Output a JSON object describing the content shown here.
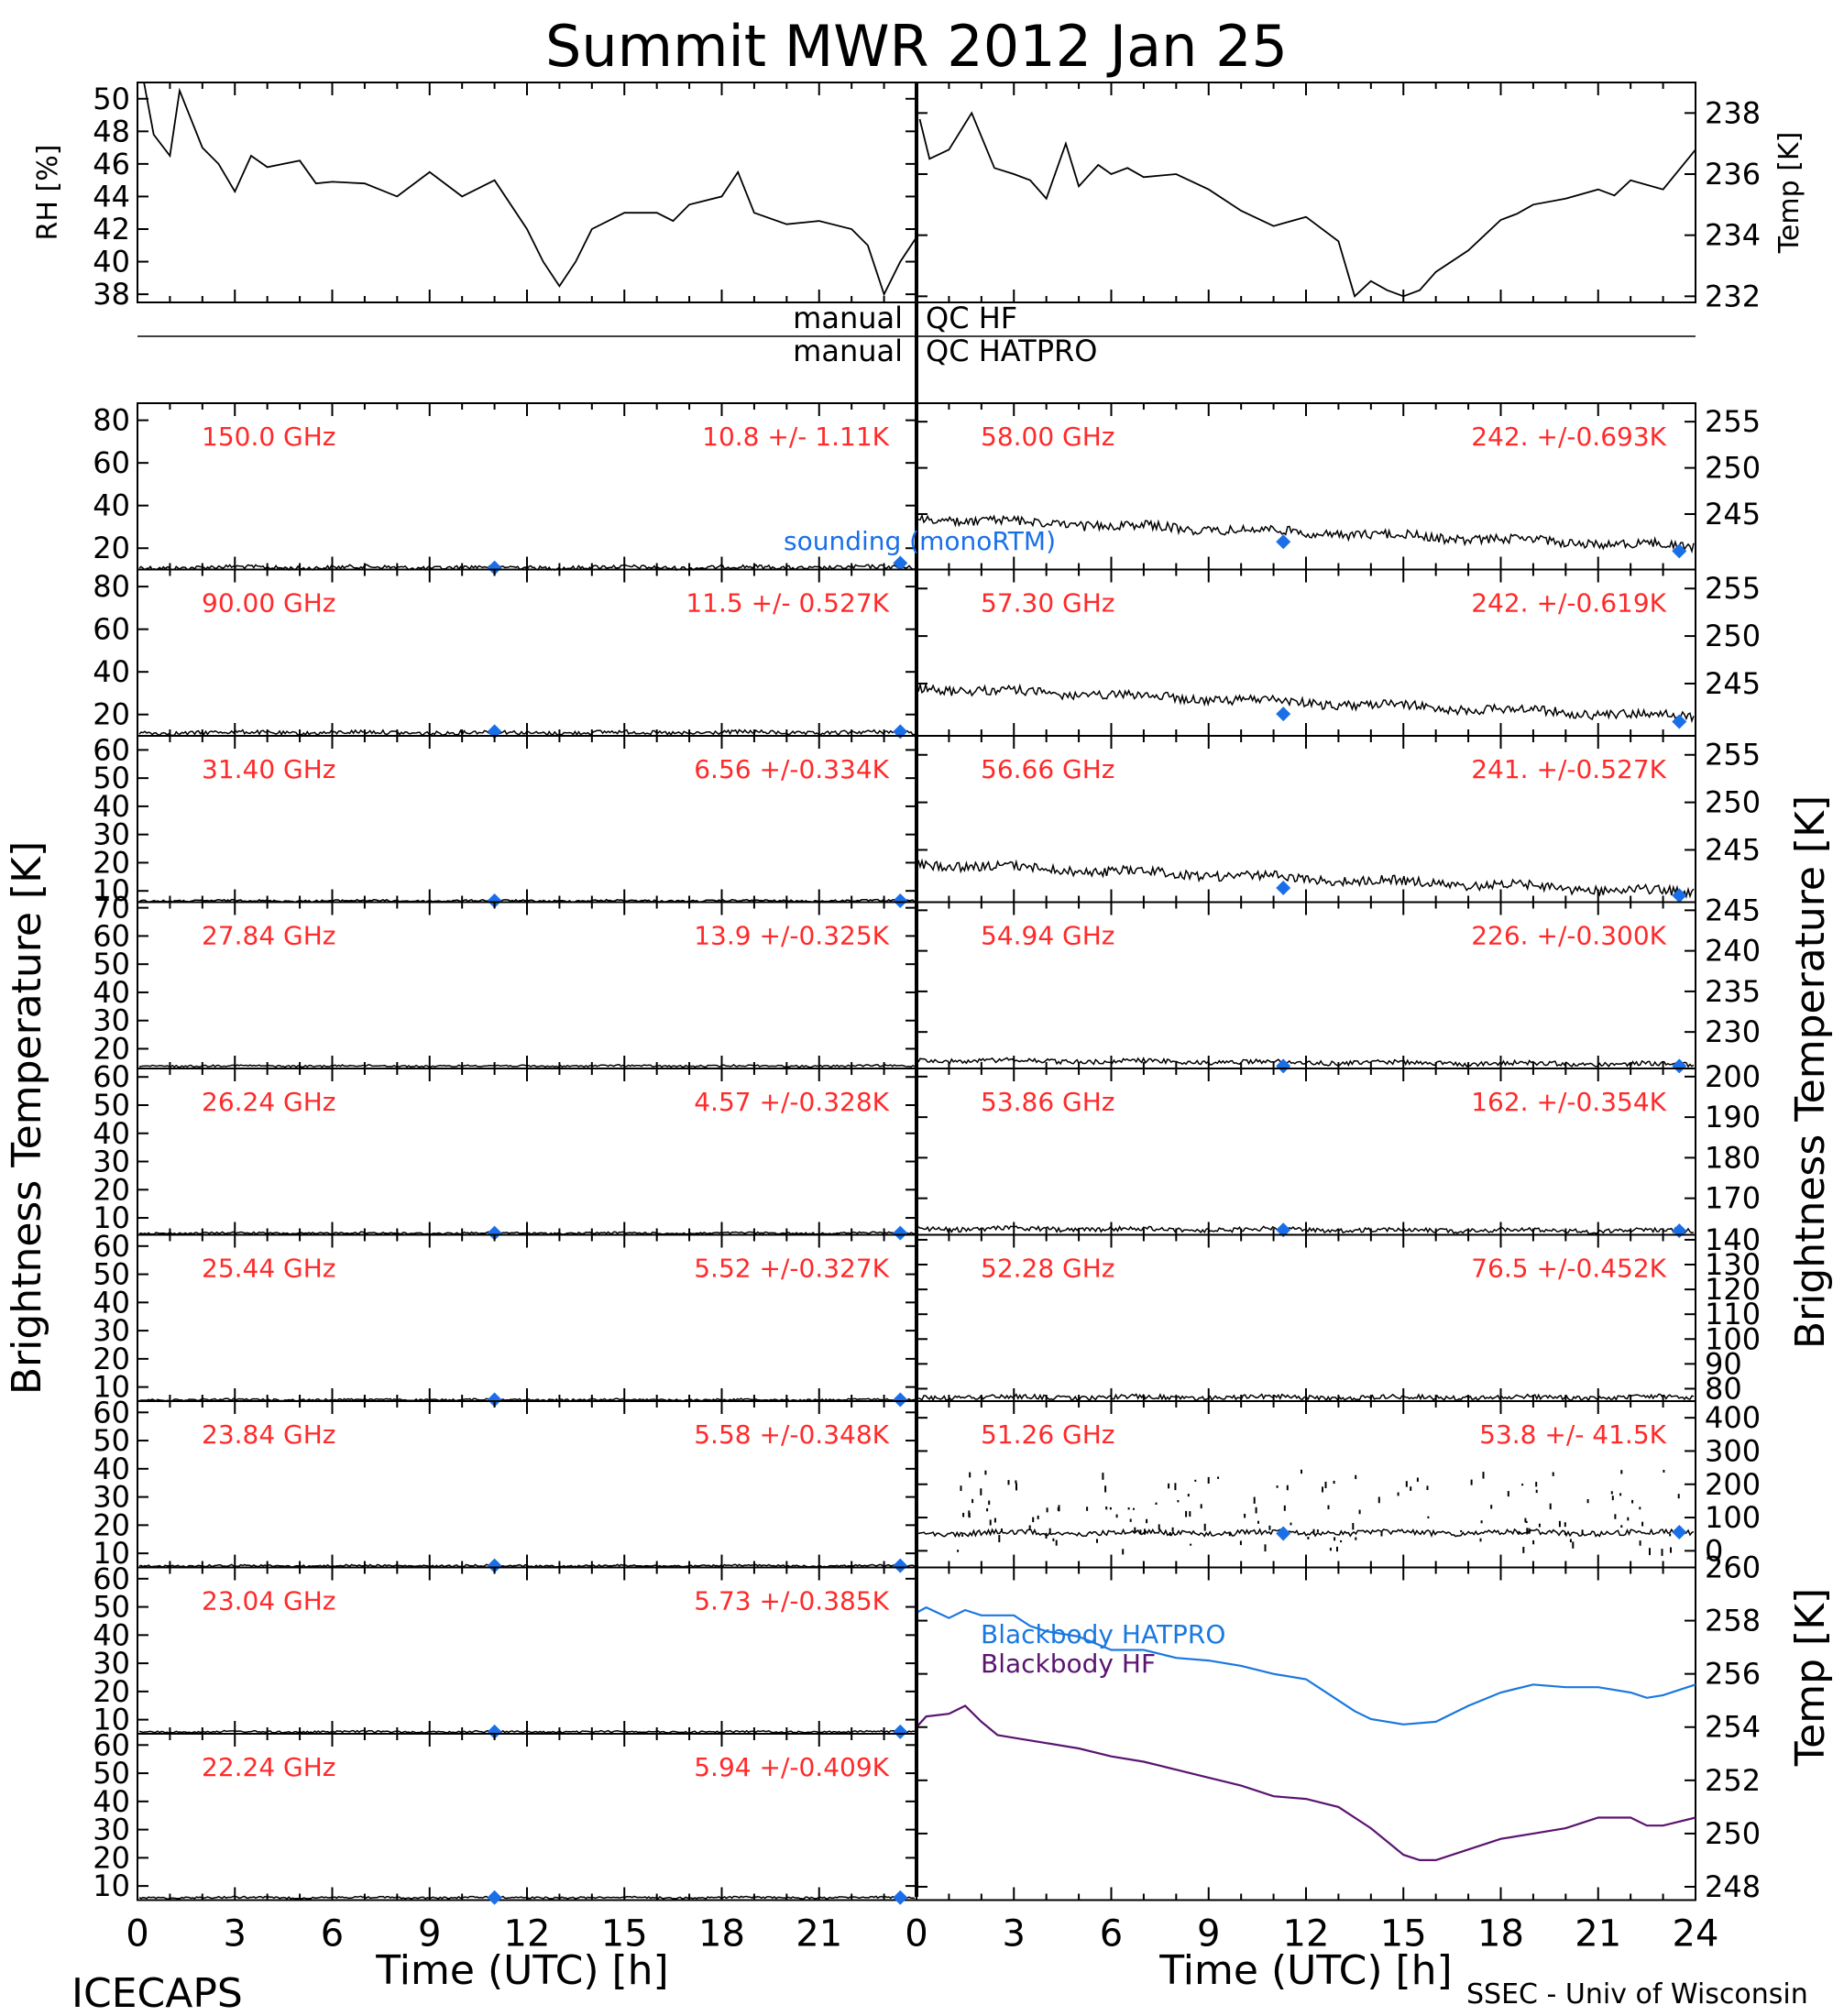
{
  "title": "Summit MWR 2012 Jan 25",
  "footer": {
    "left": "ICECAPS",
    "right": "SSEC - Univ of Wisconsin",
    "xlabel_left": "Time (UTC) [h]",
    "xlabel_right": "Time (UTC) [h]"
  },
  "side_labels": {
    "left": "Brightness Temperature [K]",
    "right": "Brightness Temperature [K]",
    "temp_right": "Temp [K]"
  },
  "qc": {
    "manual_1": "manual",
    "qc_hf": "QC HF",
    "manual_2": "manual",
    "qc_hatpro": "QC HATPRO"
  },
  "legend": {
    "sounding": "sounding (monoRTM)",
    "bb_hatpro": "Blackbody HATPRO",
    "bb_hf": "Blackbody HF"
  },
  "colors": {
    "label_red": "#ff2a2a",
    "sounding_blue": "#1a6fe8",
    "bb_hatpro": "#1a78e0",
    "bb_hf": "#5a1470",
    "trace": "#000000"
  },
  "chart_data": {
    "type": "line",
    "x_ticks": [
      0,
      3,
      6,
      9,
      12,
      15,
      18,
      21
    ],
    "x_ticks_right": [
      0,
      3,
      6,
      9,
      12,
      15,
      18,
      21,
      24
    ],
    "xlim": [
      0,
      24
    ],
    "top_panel": {
      "left": {
        "ylabel": "RH [%]",
        "ylim": [
          37.5,
          51
        ],
        "yticks": [
          "38",
          "40",
          "42",
          "44",
          "46",
          "48",
          "50"
        ],
        "x": [
          0.2,
          0.5,
          1,
          1.3,
          2,
          2.5,
          3,
          3.5,
          4,
          5,
          5.5,
          6,
          7,
          8,
          9,
          10,
          11,
          12,
          12.5,
          13,
          13.5,
          14,
          15,
          16,
          16.5,
          17,
          18,
          18.5,
          19,
          20,
          21,
          22,
          22.5,
          23,
          23.5,
          24
        ],
        "values": [
          51,
          47.8,
          46.5,
          50.5,
          47,
          46,
          44.3,
          46.5,
          45.8,
          46.2,
          44.8,
          44.9,
          44.8,
          44,
          45.5,
          44,
          45,
          42,
          40,
          38.5,
          40,
          42,
          43,
          43,
          42.5,
          43.5,
          44,
          45.5,
          43,
          42.3,
          42.5,
          42,
          41,
          38,
          40,
          41.5
        ]
      },
      "right": {
        "ylabel": "Temp [K]",
        "ylim": [
          231.8,
          239
        ],
        "yticks": [
          "232",
          "234",
          "236",
          "238"
        ],
        "x": [
          0.1,
          0.4,
          1,
          1.7,
          2.4,
          3,
          3.5,
          4,
          4.6,
          5,
          5.6,
          6,
          6.5,
          7,
          8,
          9,
          10,
          11,
          12,
          13,
          13.5,
          14,
          14.5,
          15,
          15.5,
          16,
          17,
          18,
          18.5,
          19,
          20,
          21,
          21.5,
          22,
          23,
          24
        ],
        "values": [
          237.8,
          236.5,
          236.8,
          238,
          236.2,
          236,
          235.8,
          235.2,
          237,
          235.6,
          236.3,
          236,
          236.2,
          235.9,
          236,
          235.5,
          234.8,
          234.3,
          234.6,
          233.8,
          232,
          232.5,
          232.2,
          232,
          232.2,
          232.8,
          233.5,
          234.5,
          234.7,
          235,
          235.2,
          235.5,
          235.3,
          235.8,
          235.5,
          236.8
        ]
      }
    },
    "left_column": [
      {
        "freq": "150.0 GHz",
        "stat": "10.8 +/-  1.11K",
        "ylim": [
          10,
          88
        ],
        "yticks": [
          "20",
          "40",
          "60",
          "80"
        ],
        "level": 11,
        "sounding": [
          [
            11,
            10.8
          ],
          [
            23.5,
            13
          ]
        ]
      },
      {
        "freq": "90.00 GHz",
        "stat": "11.5 +/- 0.527K",
        "ylim": [
          10,
          88
        ],
        "yticks": [
          "20",
          "40",
          "60",
          "80"
        ],
        "level": 11.5,
        "sounding": [
          [
            11,
            12
          ],
          [
            23.5,
            12
          ]
        ]
      },
      {
        "freq": "31.40 GHz",
        "stat": "6.56 +/-0.334K",
        "ylim": [
          6,
          65
        ],
        "yticks": [
          "10",
          "20",
          "30",
          "40",
          "50",
          "60"
        ],
        "level": 6.5,
        "sounding": [
          [
            11,
            6.5
          ],
          [
            23.5,
            6.5
          ]
        ]
      },
      {
        "freq": "27.84 GHz",
        "stat": "13.9 +/-0.325K",
        "ylim": [
          13,
          72
        ],
        "yticks": [
          "20",
          "30",
          "40",
          "50",
          "60",
          "70"
        ],
        "level": 13.9,
        "sounding": []
      },
      {
        "freq": "26.24 GHz",
        "stat": "4.57 +/-0.328K",
        "ylim": [
          4,
          63
        ],
        "yticks": [
          "10",
          "20",
          "30",
          "40",
          "50",
          "60"
        ],
        "level": 4.6,
        "sounding": [
          [
            11,
            4.6
          ],
          [
            23.5,
            4.6
          ]
        ]
      },
      {
        "freq": "25.44 GHz",
        "stat": "5.52 +/-0.327K",
        "ylim": [
          5,
          64
        ],
        "yticks": [
          "10",
          "20",
          "30",
          "40",
          "50",
          "60"
        ],
        "level": 5.5,
        "sounding": [
          [
            11,
            5.5
          ],
          [
            23.5,
            5.5
          ]
        ]
      },
      {
        "freq": "23.84 GHz",
        "stat": "5.58 +/-0.348K",
        "ylim": [
          5,
          64
        ],
        "yticks": [
          "10",
          "20",
          "30",
          "40",
          "50",
          "60"
        ],
        "level": 5.6,
        "sounding": [
          [
            11,
            5.6
          ],
          [
            23.5,
            5.6
          ]
        ]
      },
      {
        "freq": "23.04 GHz",
        "stat": "5.73 +/-0.385K",
        "ylim": [
          5,
          64
        ],
        "yticks": [
          "10",
          "20",
          "30",
          "40",
          "50",
          "60"
        ],
        "level": 5.7,
        "sounding": [
          [
            11,
            5.7
          ],
          [
            23.5,
            5.7
          ]
        ]
      },
      {
        "freq": "22.24 GHz",
        "stat": "5.94 +/-0.409K",
        "ylim": [
          5,
          64
        ],
        "yticks": [
          "10",
          "20",
          "30",
          "40",
          "50",
          "60"
        ],
        "level": 5.9,
        "sounding": [
          [
            11,
            5.9
          ],
          [
            23.5,
            5.9
          ]
        ]
      }
    ],
    "right_column": [
      {
        "freq": "58.00 GHz",
        "stat": "242. +/-0.693K",
        "ylim": [
          239,
          257
        ],
        "yticks": [
          "245",
          "250",
          "255"
        ],
        "trend": [
          244.5,
          241.5
        ],
        "sounding": [
          [
            11.3,
            242
          ],
          [
            23.5,
            241
          ]
        ]
      },
      {
        "freq": "57.30 GHz",
        "stat": "242. +/-0.619K",
        "ylim": [
          239.5,
          257
        ],
        "yticks": [
          "245",
          "250",
          "255"
        ],
        "trend": [
          244.5,
          241.5
        ],
        "sounding": [
          [
            11.3,
            241.8
          ],
          [
            23.5,
            241
          ]
        ]
      },
      {
        "freq": "56.66 GHz",
        "stat": "241. +/-0.527K",
        "ylim": [
          239.5,
          257
        ],
        "yticks": [
          "245",
          "250",
          "255"
        ],
        "trend": [
          243.5,
          240.5
        ],
        "sounding": [
          [
            11.3,
            241
          ],
          [
            23.5,
            240.2
          ]
        ]
      },
      {
        "freq": "54.94 GHz",
        "stat": "226. +/-0.300K",
        "ylim": [
          225.5,
          246
        ],
        "yticks": [
          "230",
          "235",
          "240",
          "245"
        ],
        "trend": [
          226.5,
          226
        ],
        "sounding": [
          [
            11.3,
            225.8
          ],
          [
            23.5,
            225.8
          ]
        ]
      },
      {
        "freq": "53.86 GHz",
        "stat": "162. +/-0.354K",
        "ylim": [
          161,
          202
        ],
        "yticks": [
          "170",
          "180",
          "190",
          "200"
        ],
        "trend": [
          162.5,
          162
        ],
        "sounding": [
          [
            11.3,
            162.2
          ],
          [
            23.5,
            162
          ]
        ]
      },
      {
        "freq": "52.28 GHz",
        "stat": "76.5 +/-0.452K",
        "ylim": [
          75,
          142
        ],
        "yticks": [
          "80",
          "90",
          "100",
          "110",
          "120",
          "130",
          "140"
        ],
        "trend": [
          76.5,
          76.5
        ],
        "sounding": []
      },
      {
        "freq": "51.26 GHz",
        "stat": "53.8 +/- 41.5K",
        "ylim": [
          -50,
          450
        ],
        "yticks": [
          "0",
          "100",
          "200",
          "300",
          "400"
        ],
        "trend": [
          54,
          54
        ],
        "sounding": [
          [
            11.3,
            52
          ],
          [
            23.5,
            56
          ]
        ]
      }
    ],
    "blackbody_panel": {
      "ylabel": "Temp [K]",
      "ylim": [
        247.5,
        260
      ],
      "yticks": [
        "248",
        "250",
        "252",
        "254",
        "256",
        "258",
        "260"
      ],
      "series": [
        {
          "name": "Blackbody HATPRO",
          "x": [
            0,
            0.3,
            1,
            1.5,
            2,
            3,
            3.5,
            4,
            5,
            6,
            7,
            8,
            9,
            10,
            11,
            12,
            12.5,
            13,
            13.5,
            14,
            15,
            16,
            17,
            18,
            19,
            20,
            21,
            22,
            22.5,
            23,
            24
          ],
          "values": [
            258.3,
            258.5,
            258.1,
            258.4,
            258.2,
            258.2,
            257.8,
            257.6,
            257.4,
            256.9,
            256.9,
            256.6,
            256.5,
            256.3,
            256,
            255.8,
            255.4,
            255,
            254.6,
            254.3,
            254.1,
            254.2,
            254.8,
            255.3,
            255.6,
            255.5,
            255.5,
            255.3,
            255.1,
            255.2,
            255.6
          ]
        },
        {
          "name": "Blackbody HF",
          "x": [
            0,
            0.3,
            1,
            1.5,
            2,
            2.5,
            3,
            4,
            5,
            6,
            7,
            8,
            9,
            10,
            11,
            12,
            13,
            14,
            15,
            15.5,
            16,
            17,
            18,
            19,
            20,
            21,
            22,
            22.5,
            23,
            24
          ],
          "values": [
            254,
            254.4,
            254.5,
            254.8,
            254.2,
            253.7,
            253.6,
            253.4,
            253.2,
            252.9,
            252.7,
            252.4,
            252.1,
            251.8,
            251.4,
            251.3,
            251,
            250.2,
            249.2,
            249,
            249,
            249.4,
            249.8,
            250,
            250.2,
            250.6,
            250.6,
            250.3,
            250.3,
            250.6
          ]
        }
      ]
    }
  }
}
